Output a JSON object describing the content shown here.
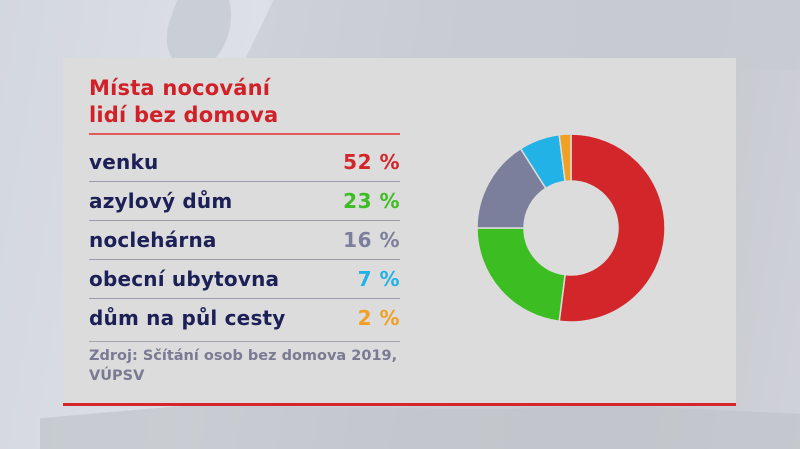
{
  "title": {
    "line1": "Místa nocování",
    "line2": "lidí bez domova"
  },
  "rows": [
    {
      "label": "venku",
      "value": "52 %",
      "color": "#d3262b"
    },
    {
      "label": "azylový dům",
      "value": "23 %",
      "color": "#3cbd22"
    },
    {
      "label": "noclehárna",
      "value": "16 %",
      "color": "#7b7f9c"
    },
    {
      "label": "obecní ubytovna",
      "value": "7 %",
      "color": "#22b2e6"
    },
    {
      "label": "dům na půl cesty",
      "value": "2 %",
      "color": "#f0a023"
    }
  ],
  "source": {
    "line1": "Zdroj: Sčítání osob bez domova 2019,",
    "line2": "VÚPSV"
  },
  "colors": {
    "title": "#cf2127",
    "label": "#1c2057",
    "source": "#7a7b93",
    "accent_line": "#d6262c",
    "panel": "#dcdcdc"
  },
  "chart_data": {
    "type": "pie",
    "subtype": "donut",
    "title": "Místa nocování lidí bez domova",
    "categories": [
      "venku",
      "azylový dům",
      "noclehárna",
      "obecní ubytovna",
      "dům na půl cesty"
    ],
    "values": [
      52,
      23,
      16,
      7,
      2
    ],
    "unit": "%",
    "colors": [
      "#d3262b",
      "#3cbd22",
      "#7b7f9c",
      "#22b2e6",
      "#f0a023"
    ],
    "start_angle": "12 o'clock, clockwise",
    "source": "Zdroj: Sčítání osob bez domova 2019, VÚPSV",
    "legend_position": "left (table)"
  }
}
